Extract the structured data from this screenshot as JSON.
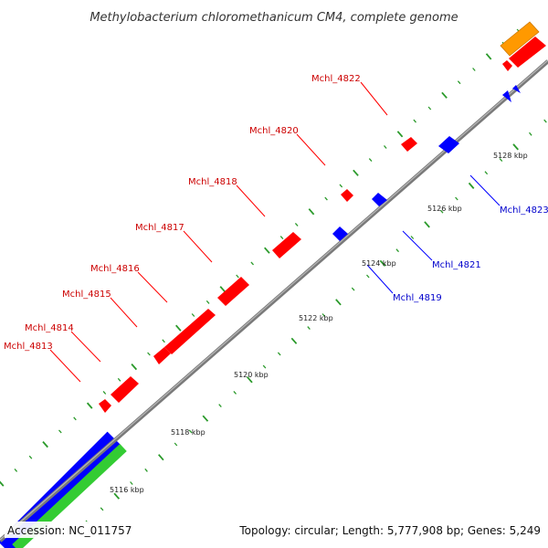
{
  "title": "Methylobacterium chloromethanicum CM4, complete genome",
  "footer": {
    "accession": "Accession: NC_011757",
    "summary": "Topology: circular; Length: 5,777,908 bp; Genes: 5,249"
  },
  "colors": {
    "forward_gene": "#ff0000",
    "reverse_gene": "#0000ff",
    "backbone": "#808080",
    "tick": "#2a9a2a",
    "orange_band": "#ff9900",
    "blue_band": "#0000ff",
    "green_band": "#33cc33"
  },
  "scale_labels": [
    "5116 kbp",
    "5118 kbp",
    "5120 kbp",
    "5122 kbp",
    "5124 kbp",
    "5126 kbp",
    "5128 kbp"
  ],
  "forward_genes": [
    "Mchl_4813",
    "Mchl_4814",
    "Mchl_4815",
    "Mchl_4816",
    "Mchl_4817",
    "Mchl_4818",
    "Mchl_4820",
    "Mchl_4822"
  ],
  "reverse_genes": [
    "Mchl_4819",
    "Mchl_4821",
    "Mchl_4823"
  ]
}
